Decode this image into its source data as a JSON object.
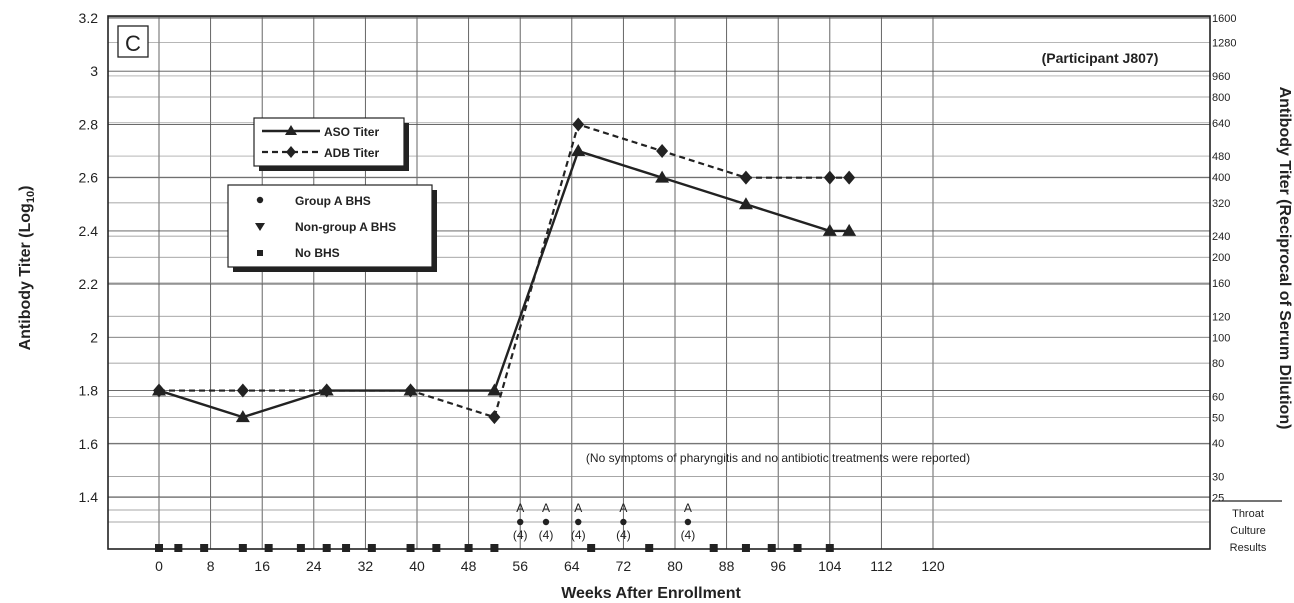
{
  "chart_data": {
    "type": "line",
    "panel_label": "C",
    "participant": "(Participant J807)",
    "xlabel": "Weeks After Enrollment",
    "ylabel_left_main": "Antibody Titer (Log",
    "ylabel_left_sub": "10",
    "ylabel_left_end": ")",
    "ylabel_right": "Antibody Titer (Reciprocal of Serum Dilution)",
    "xlim": [
      -4,
      122
    ],
    "ylim": [
      1.2,
      3.2
    ],
    "x_ticks": [
      0,
      8,
      16,
      24,
      32,
      40,
      48,
      56,
      64,
      72,
      80,
      88,
      96,
      104,
      112,
      120
    ],
    "y_ticks": [
      1.4,
      1.6,
      1.8,
      2,
      2.2,
      2.4,
      2.6,
      2.8,
      3,
      3.2
    ],
    "right_ticks": [
      "1600",
      "1280",
      "960",
      "800",
      "640",
      "480",
      "400",
      "320",
      "240",
      "200",
      "160",
      "120",
      "100",
      "80",
      "60",
      "50",
      "40",
      "30",
      "25"
    ],
    "series": [
      {
        "name": "ASO Titer",
        "marker": "triangle",
        "dash": "solid",
        "x": [
          0,
          13,
          26,
          39,
          52,
          65,
          78,
          91,
          104,
          107
        ],
        "y": [
          1.8,
          1.7,
          1.8,
          1.8,
          1.8,
          2.7,
          2.6,
          2.5,
          2.4,
          2.4
        ]
      },
      {
        "name": "ADB Titer",
        "marker": "diamond",
        "dash": "dashed",
        "x": [
          0,
          13,
          26,
          39,
          52,
          65,
          78,
          91,
          104,
          107
        ],
        "y": [
          1.8,
          1.8,
          1.8,
          1.8,
          1.7,
          2.8,
          2.7,
          2.6,
          2.6,
          2.6
        ]
      }
    ],
    "culture_legend": [
      "Group A BHS",
      "Non-group A BHS",
      "No BHS"
    ],
    "culture_results": {
      "group_a_bhs_weeks": [
        56,
        60,
        65,
        72,
        82
      ],
      "group_a_label_top": "A",
      "group_a_label_bottom": "(4)",
      "no_bhs_weeks": [
        0,
        3,
        7,
        13,
        17,
        22,
        26,
        29,
        33,
        39,
        43,
        48,
        52,
        67,
        76,
        86,
        91,
        95,
        99,
        104
      ]
    },
    "throat_culture_label": [
      "Throat",
      "Culture",
      "Results"
    ],
    "annotation": "(No symptoms of pharyngitis and no antibiotic treatments were reported)"
  }
}
